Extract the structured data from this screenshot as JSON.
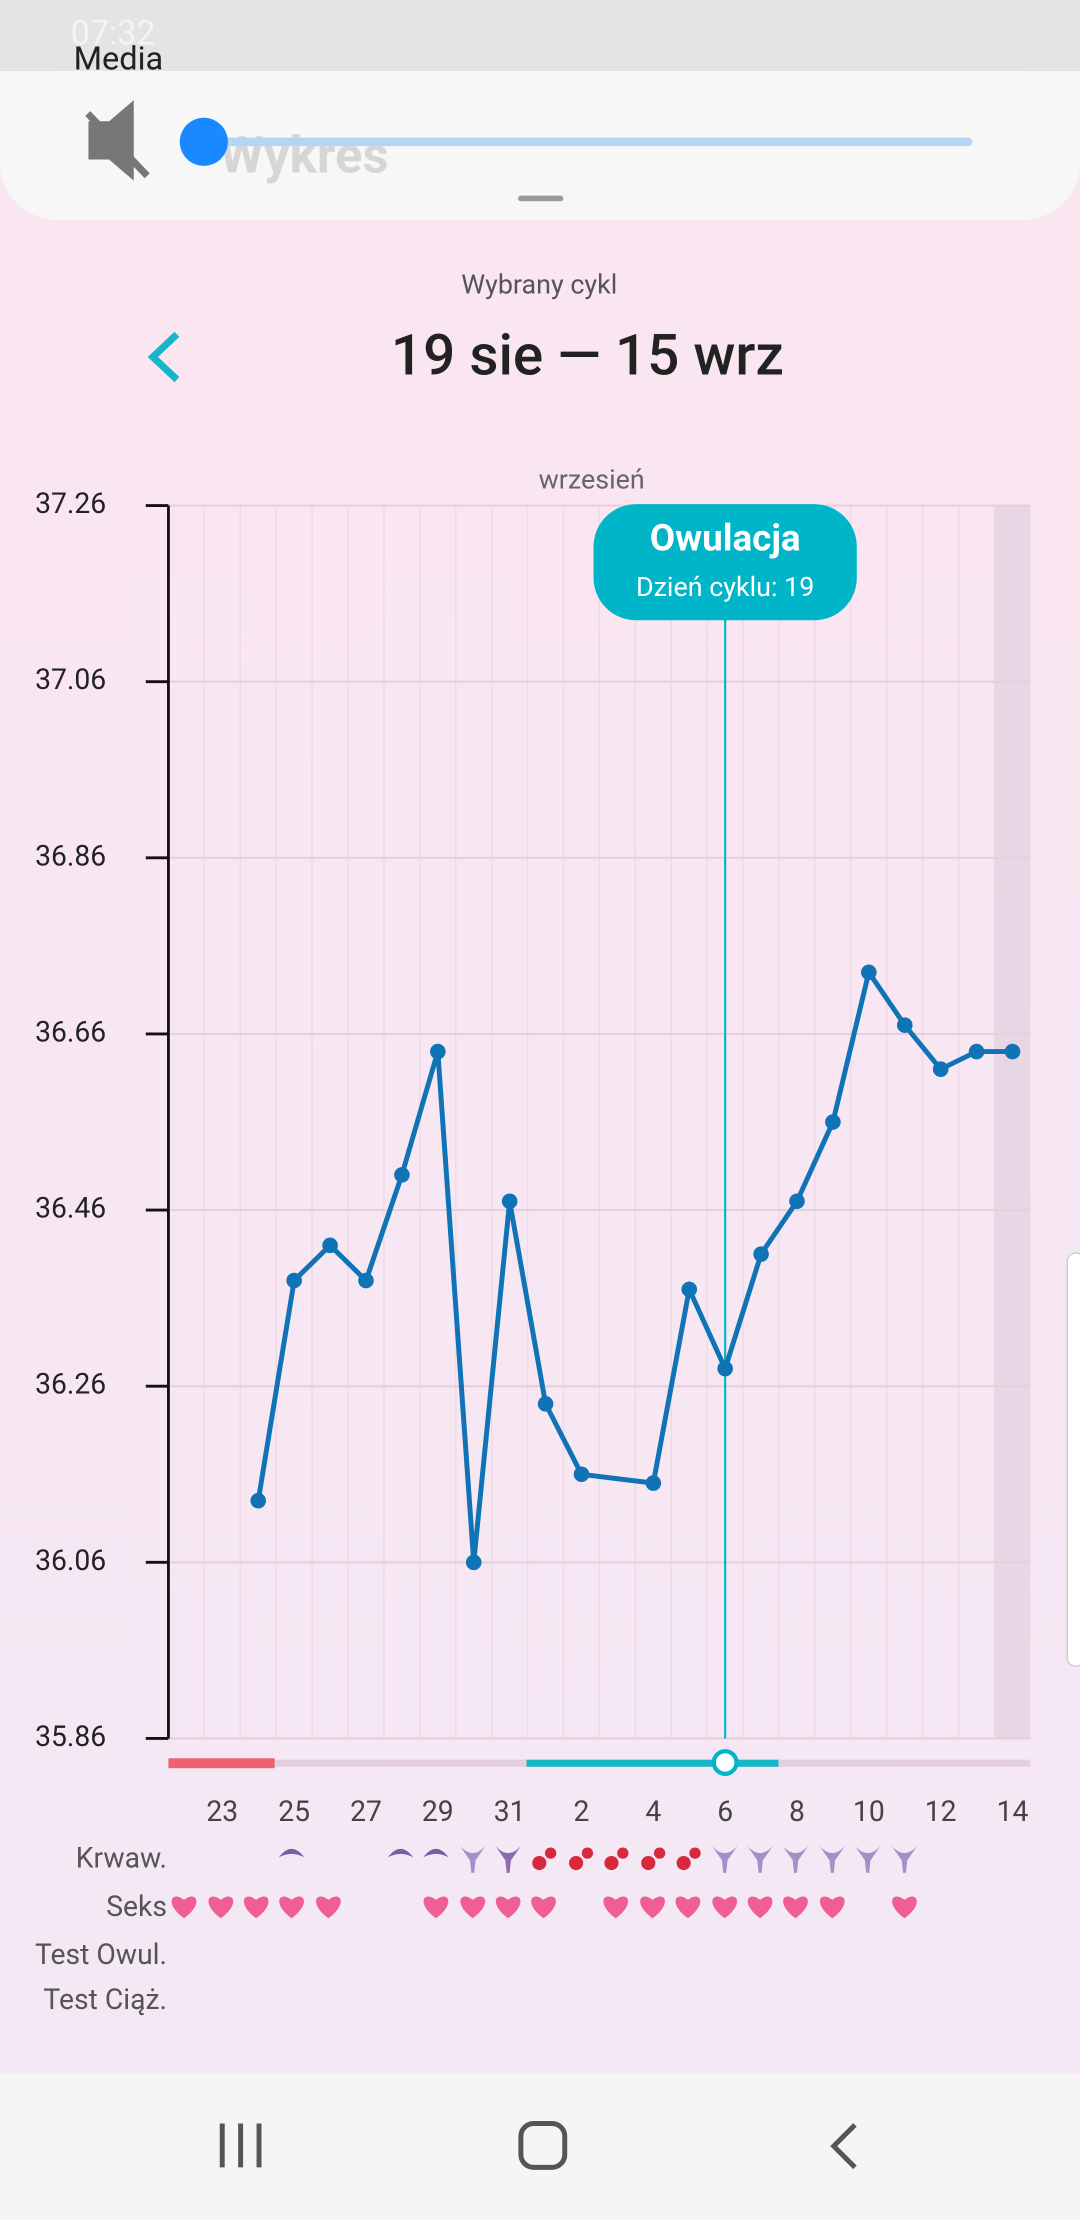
{
  "status_bar": {
    "time": "07:32"
  },
  "volume_panel": {
    "label": "Media"
  },
  "app_bar": {
    "title": "Wykres"
  },
  "cycle": {
    "caption": "Wybrany cykl",
    "range": "19 sie — 15 wrz"
  },
  "chart_data": {
    "type": "line",
    "month_label": "wrzesień",
    "x": [
      6,
      7,
      8,
      9,
      10,
      11,
      12,
      13,
      14,
      15,
      17,
      18,
      19,
      20,
      21,
      22,
      23,
      24,
      25,
      26,
      27
    ],
    "series": [
      {
        "color": "#0f73b5",
        "values": [
          36.13,
          36.38,
          36.42,
          36.38,
          36.5,
          36.64,
          36.06,
          36.47,
          36.24,
          36.16,
          36.15,
          36.37,
          36.28,
          36.41,
          36.47,
          36.56,
          36.73,
          36.67,
          36.62,
          36.64,
          36.64
        ]
      }
    ],
    "xlim": [
      3.5,
      27.5
    ],
    "xticks": [
      {
        "value": 5,
        "label": "23"
      },
      {
        "value": 7,
        "label": "25"
      },
      {
        "value": 9,
        "label": "27"
      },
      {
        "value": 11,
        "label": "29"
      },
      {
        "value": 13,
        "label": "31"
      },
      {
        "value": 15,
        "label": "2"
      },
      {
        "value": 17,
        "label": "4"
      },
      {
        "value": 19,
        "label": "6"
      },
      {
        "value": 21,
        "label": "8"
      },
      {
        "value": 23,
        "label": "10"
      },
      {
        "value": 25,
        "label": "12"
      },
      {
        "value": 27,
        "label": "14"
      }
    ],
    "ylim": [
      35.86,
      37.26
    ],
    "yticks": [
      35.86,
      36.06,
      36.26,
      36.46,
      36.66,
      36.86,
      37.06,
      37.26
    ],
    "grid": true,
    "ovulation": {
      "title": "Owulacja",
      "subtitle": "Dzień cyklu: 19",
      "x": 19,
      "color": "#00b5c8"
    }
  },
  "rows": [
    "Krwaw.",
    "Seks",
    "Test Owul.",
    "Test Ciąż."
  ]
}
